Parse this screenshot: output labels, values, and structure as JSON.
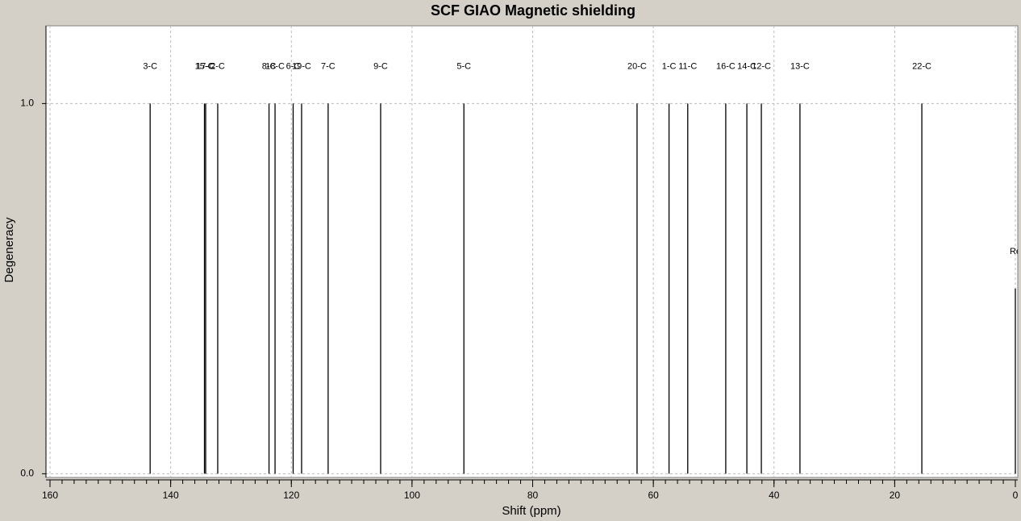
{
  "chart_data": {
    "type": "stick",
    "title": "SCF GIAO Magnetic shielding",
    "x_label": "Shift (ppm)",
    "y_label": "Degeneracy",
    "xlim": [
      160,
      0
    ],
    "ylim": [
      -0.01,
      1.21
    ],
    "xticks": [
      160,
      140,
      120,
      100,
      80,
      60,
      40,
      20,
      0
    ],
    "xminorticks": [
      160,
      158,
      156,
      154,
      152,
      150,
      148,
      146,
      144,
      142,
      140,
      138,
      136,
      134,
      132,
      130,
      128,
      126,
      124,
      122,
      120,
      118,
      116,
      114,
      112,
      110,
      108,
      106,
      104,
      102,
      100,
      98,
      96,
      94,
      92,
      90,
      88,
      86,
      84,
      82,
      80,
      78,
      76,
      74,
      72,
      70,
      68,
      66,
      64,
      62,
      60,
      58,
      56,
      54,
      52,
      50,
      48,
      46,
      44,
      42,
      40,
      38,
      36,
      34,
      32,
      30,
      28,
      26,
      24,
      22,
      20,
      18,
      16,
      14,
      12,
      10,
      8,
      6,
      4,
      2,
      0
    ],
    "yticks": [
      {
        "value": 0,
        "label": "0.0"
      },
      {
        "value": 1,
        "label": "1.0"
      }
    ],
    "grid": true,
    "color": "#000000",
    "labels": [
      "3-C",
      "15-C",
      "17-C",
      "2-C",
      "8-C",
      "18-C",
      "6-C",
      "19-C",
      "7-C",
      "9-C",
      "5-C",
      "20-C",
      "1-C",
      "11-C",
      "16-C",
      "14-C",
      "12-C",
      "13-C",
      "22-C",
      "Re"
    ],
    "x": [
      143.4,
      134.4,
      134.2,
      132.2,
      123.7,
      122.7,
      119.7,
      118.3,
      113.9,
      105.2,
      91.4,
      62.7,
      57.4,
      54.3,
      48.0,
      44.5,
      42.1,
      35.7,
      15.5,
      0
    ],
    "values": [
      1,
      1,
      1,
      1,
      1,
      1,
      1,
      1,
      1,
      1,
      1,
      1,
      1,
      1,
      1,
      1,
      1,
      1,
      1,
      0.5
    ]
  }
}
